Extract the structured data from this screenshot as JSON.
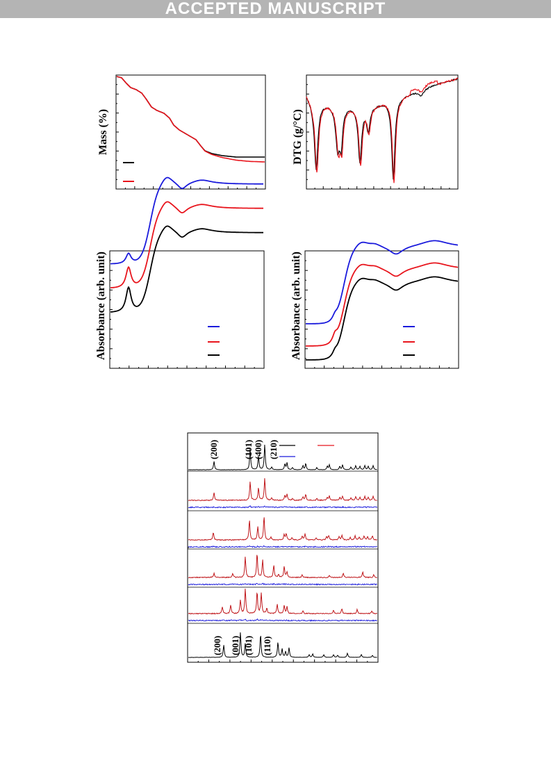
{
  "banner": "ACCEPTED MANUSCRIPT",
  "colors": {
    "black": "#000000",
    "red": "#e8141c",
    "blue": "#1a1adc",
    "darkred": "#c0181c"
  },
  "panels": {
    "tga": {
      "ylabel": "Mass (%)",
      "legend_colors": [
        "#000000",
        "#e8141c"
      ]
    },
    "dtg": {
      "ylabel": "DTG (g/°C)"
    },
    "abs_left": {
      "ylabel": "Absorbance (arb. unit)",
      "legend_colors": [
        "#1a1adc",
        "#e8141c",
        "#000000"
      ]
    },
    "abs_right": {
      "ylabel": "Absorbance (arb. unit)",
      "legend_colors": [
        "#1a1adc",
        "#e8141c",
        "#000000"
      ]
    },
    "xrd": {
      "top_peak_labels": [
        "(200)",
        "(101)",
        "(400)",
        "(210)"
      ],
      "bottom_peak_labels": [
        "(200)",
        "(001)",
        "(101)",
        "(110)"
      ],
      "legend_colors": [
        "#000000",
        "#e8141c",
        "#1a1adc"
      ]
    }
  }
}
